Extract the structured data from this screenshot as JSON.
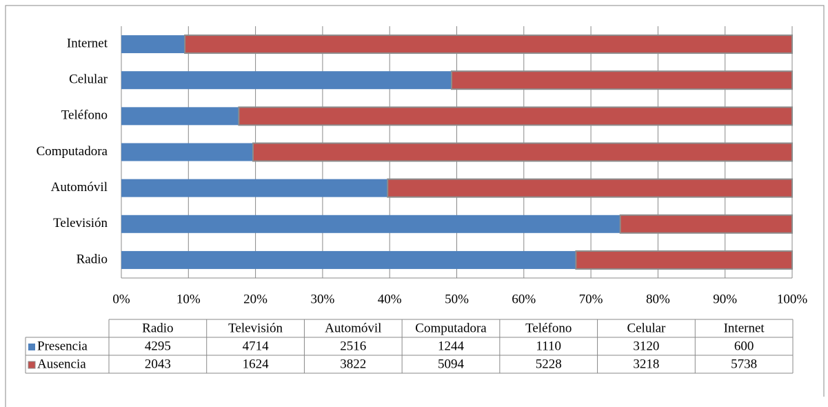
{
  "chart_data": {
    "type": "bar100h",
    "categories": [
      "Radio",
      "Televisión",
      "Automóvil",
      "Computadora",
      "Teléfono",
      "Celular",
      "Internet"
    ],
    "series": [
      {
        "name": "Presencia",
        "color": "#4f81bd",
        "values": [
          4295,
          4714,
          2516,
          1244,
          1110,
          3120,
          600
        ]
      },
      {
        "name": "Ausencia",
        "color": "#c0504d",
        "values": [
          2043,
          1624,
          3822,
          5094,
          5228,
          3218,
          5738
        ]
      }
    ],
    "xlim": [
      0,
      100
    ],
    "xticks": [
      {
        "value": 0,
        "label": "0%"
      },
      {
        "value": 10,
        "label": "10%"
      },
      {
        "value": 20,
        "label": "20%"
      },
      {
        "value": 30,
        "label": "30%"
      },
      {
        "value": 40,
        "label": "40%"
      },
      {
        "value": 50,
        "label": "50%"
      },
      {
        "value": 60,
        "label": "60%"
      },
      {
        "value": 70,
        "label": "70%"
      },
      {
        "value": 80,
        "label": "80%"
      },
      {
        "value": 90,
        "label": "90%"
      },
      {
        "value": 100,
        "label": "100%"
      }
    ],
    "grid": true
  }
}
